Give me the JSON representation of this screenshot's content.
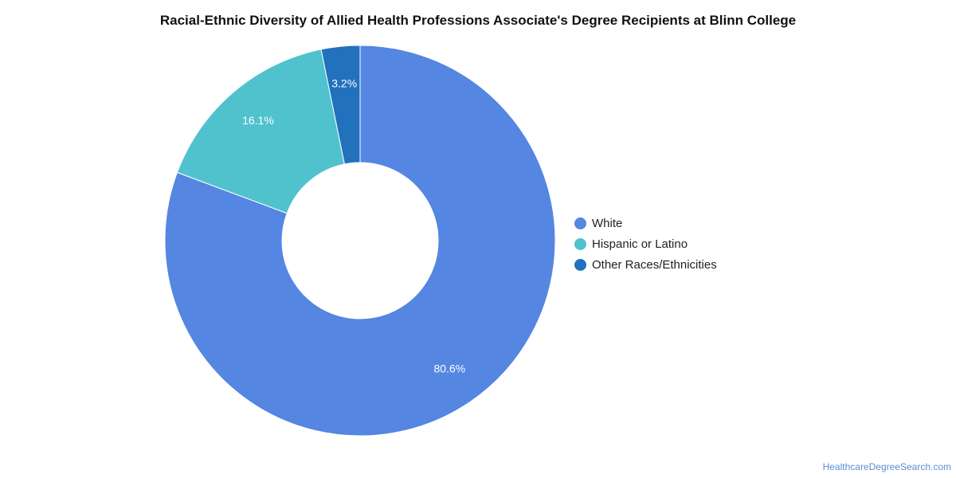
{
  "chart_data": {
    "type": "pie",
    "title": "Racial-Ethnic Diversity of Allied Health Professions Associate's Degree Recipients at Blinn College",
    "donut": true,
    "legend_position": "right",
    "categories": [
      "White",
      "Hispanic or Latino",
      "Other Races/Ethnicities"
    ],
    "values": [
      80.6,
      16.1,
      3.2
    ],
    "labels": [
      "80.6%",
      "16.1%",
      "3.2%"
    ],
    "colors": [
      "#5486e2",
      "#50c2cd",
      "#2171bd"
    ]
  },
  "source": "HealthcareDegreeSearch.com"
}
